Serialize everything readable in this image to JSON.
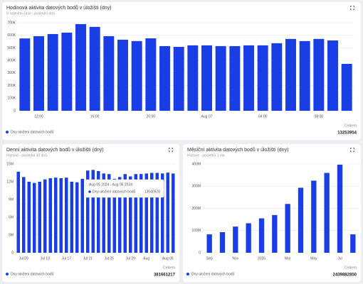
{
  "chart_data": [
    {
      "type": "bar",
      "title": "Hodinová aktivita datových bodů v úložišti (dny)",
      "subtitle": "V reálném čase - poslední den",
      "categories": [
        null,
        "12:00",
        null,
        null,
        null,
        "16:00",
        null,
        null,
        null,
        "20:00",
        null,
        null,
        null,
        "Aug 07",
        null,
        null,
        null,
        "04:00",
        null,
        null,
        null,
        "08:00",
        null,
        null
      ],
      "series": [
        {
          "name": "Dny uložení datových bodů",
          "color": "#1a3ee6",
          "values": [
            575000,
            593000,
            610000,
            621000,
            689000,
            667000,
            593000,
            565000,
            554000,
            576000,
            514000,
            508000,
            520000,
            520000,
            514000,
            514000,
            520000,
            520000,
            537000,
            571000,
            554000,
            571000,
            559000,
            373000
          ]
        }
      ],
      "ylim": [
        0,
        700000
      ],
      "yticks": [
        0,
        {
          "value": 100000,
          "label": "100K"
        },
        {
          "value": 200000,
          "label": "200K"
        },
        {
          "value": 300000,
          "label": "300K"
        },
        {
          "value": 400000,
          "label": "400K"
        },
        {
          "value": 500000,
          "label": "500K"
        },
        {
          "value": 600000,
          "label": "600K"
        },
        {
          "value": 700000,
          "label": "700K"
        }
      ],
      "grid": true,
      "total_label": "Celkem",
      "total": 13253954
    },
    {
      "type": "bar",
      "title": "Denní aktivita datových bodů v úložišti (dny)",
      "subtitle": "Historie - poslední 30 dnů",
      "categories": [
        null,
        "Jul 09",
        null,
        null,
        null,
        "Jul 13",
        null,
        null,
        null,
        "Jul 17",
        null,
        null,
        null,
        "Jul 21",
        null,
        null,
        null,
        "Jul 25",
        null,
        null,
        null,
        "Jul 29",
        null,
        null,
        "Aug",
        null,
        null,
        null,
        "Aug 05",
        null
      ],
      "series": [
        {
          "name": "Dny uložení datových bodů",
          "color": "#1a3ee6",
          "values": [
            13700000,
            12800000,
            12000000,
            11800000,
            12000000,
            12400000,
            12600000,
            12700000,
            12600000,
            12700000,
            12000000,
            11900000,
            12500000,
            13900000,
            14000000,
            13800000,
            13400000,
            13300000,
            12500000,
            12800000,
            13300000,
            12900000,
            13300000,
            13300000,
            13400000,
            13500000,
            13500000,
            13400000,
            13540928,
            13400000
          ]
        }
      ],
      "ylim": [
        0,
        15000000
      ],
      "yticks": [
        0,
        {
          "value": 3000000,
          "label": "3M"
        },
        {
          "value": 6000000,
          "label": "6M"
        },
        {
          "value": 9000000,
          "label": "9M"
        },
        {
          "value": 12000000,
          "label": "12M"
        },
        {
          "value": 15000000,
          "label": "15M"
        }
      ],
      "grid": true,
      "total_label": "Celkem",
      "total": 381661217,
      "tooltip": {
        "title": "Aug 05 2024 - Aug 06 2024",
        "value": 13540928
      }
    },
    {
      "type": "bar",
      "title": "Měsíční aktivita datových bodů v úložišti (dny)",
      "subtitle": "Historie - poslední 1 rok",
      "categories": [
        "Sep",
        null,
        "Nov",
        null,
        "2026",
        null,
        "Mar",
        null,
        "May",
        null,
        "Jul",
        null
      ],
      "series": [
        {
          "name": "Dny uložení datových bodů",
          "color": "#1a3ee6",
          "values": [
            83000000,
            93000000,
            118000000,
            133000000,
            155000000,
            170000000,
            220000000,
            293000000,
            325000000,
            360000000,
            397000000,
            83000000
          ]
        }
      ],
      "ylim": [
        0,
        400000000
      ],
      "yticks": [
        0,
        {
          "value": 100000000,
          "label": "100M"
        },
        {
          "value": 200000000,
          "label": "200M"
        },
        {
          "value": 300000000,
          "label": "300M"
        },
        {
          "value": 400000000,
          "label": "400M"
        }
      ],
      "grid": true,
      "total_label": "Celkem",
      "total": 2439882850
    }
  ]
}
